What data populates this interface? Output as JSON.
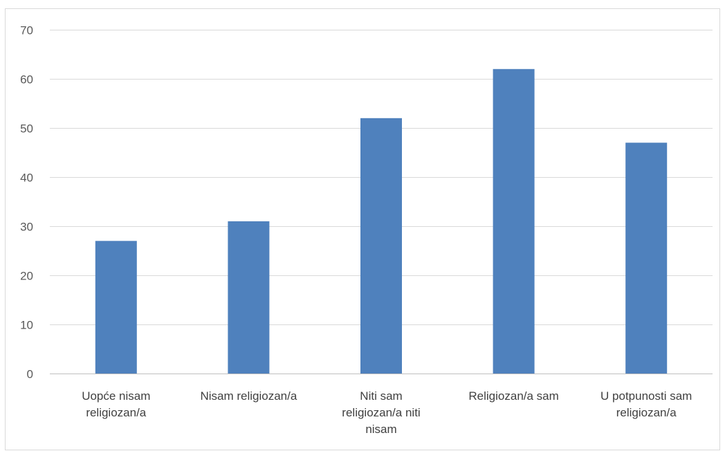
{
  "chart_data": {
    "type": "bar",
    "title": "",
    "xlabel": "",
    "ylabel": "",
    "categories": [
      [
        "Uopće nisam",
        "religiozan/a"
      ],
      [
        "Nisam religiozan/a"
      ],
      [
        "Niti sam",
        "religiozan/a niti",
        "nisam"
      ],
      [
        "Religiozan/a sam"
      ],
      [
        "U potpunosti sam",
        "religiozan/a"
      ]
    ],
    "values": [
      27,
      31,
      52,
      62,
      47
    ],
    "ylim": [
      0,
      70
    ],
    "yticks": [
      0,
      10,
      20,
      30,
      40,
      50,
      60,
      70
    ],
    "grid": true,
    "legend": "none",
    "colors": {
      "bar": "#4f81bd",
      "grid": "#d9d9d9",
      "axis": "#bfbfbf",
      "border": "#d9d9d9"
    }
  }
}
